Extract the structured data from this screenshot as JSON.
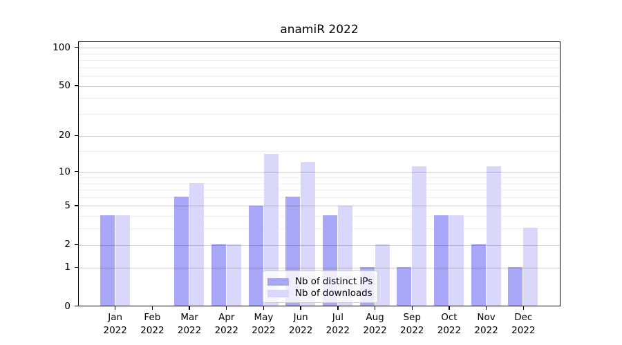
{
  "title": "anamiR 2022",
  "chart_data": {
    "type": "bar",
    "title": "anamiR 2022",
    "x_labels": [
      {
        "month": "Jan",
        "year": "2022"
      },
      {
        "month": "Feb",
        "year": "2022"
      },
      {
        "month": "Mar",
        "year": "2022"
      },
      {
        "month": "Apr",
        "year": "2022"
      },
      {
        "month": "May",
        "year": "2022"
      },
      {
        "month": "Jun",
        "year": "2022"
      },
      {
        "month": "Jul",
        "year": "2022"
      },
      {
        "month": "Aug",
        "year": "2022"
      },
      {
        "month": "Sep",
        "year": "2022"
      },
      {
        "month": "Oct",
        "year": "2022"
      },
      {
        "month": "Nov",
        "year": "2022"
      },
      {
        "month": "Dec",
        "year": "2022"
      }
    ],
    "series": [
      {
        "name": "Nb of distinct IPs",
        "color": "#a9a8f8",
        "values": [
          4,
          0,
          6,
          2,
          5,
          6,
          4,
          1,
          1,
          4,
          2,
          1
        ]
      },
      {
        "name": "Nb of downloads",
        "color": "#d9d8fa",
        "values": [
          4,
          0,
          8,
          2,
          14,
          12,
          5,
          2,
          11,
          4,
          11,
          3
        ]
      }
    ],
    "yscale": "log10(1+v)",
    "ylim": [
      0,
      115
    ],
    "yticks": [
      0,
      1,
      2,
      5,
      10,
      20,
      50,
      100
    ],
    "ytick_labels": [
      "0",
      "1",
      "2",
      "5",
      "10",
      "20",
      "50",
      "100"
    ],
    "y_minor_ticks": [
      3,
      4,
      6,
      7,
      8,
      9,
      15,
      30,
      40,
      60,
      70,
      80,
      90
    ],
    "grid": "horizontal",
    "legend_position": "lower-center-inside",
    "text_color": "#000000",
    "grid_major_color": "rgba(0,0,0,0.22)",
    "grid_minor_color": "rgba(0,0,0,0.07)"
  }
}
